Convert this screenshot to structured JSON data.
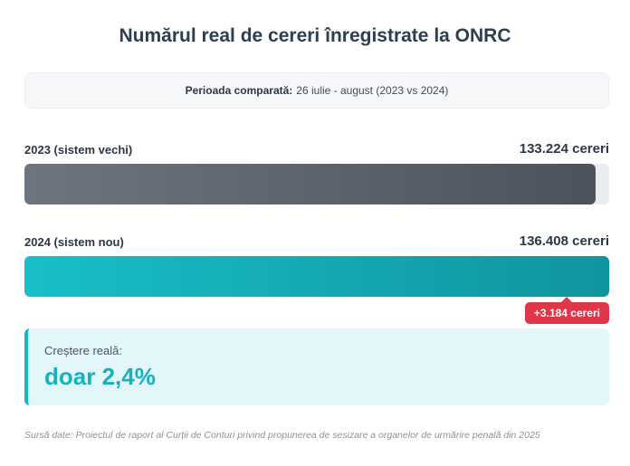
{
  "title": "Numărul real de cereri înregistrate la ONRC",
  "period": {
    "label": "Perioada comparată:",
    "value": "26 iulie - august (2023 vs 2024)"
  },
  "chart_data": {
    "type": "bar",
    "orientation": "horizontal",
    "title": "Numărul real de cereri înregistrate la ONRC",
    "categories": [
      "2023 (sistem vechi)",
      "2024 (sistem nou)"
    ],
    "values": [
      133224,
      136408
    ],
    "value_labels": [
      "133.224 cereri",
      "136.408 cereri"
    ],
    "xlim": [
      0,
      136408
    ],
    "colors": [
      "#5b626c",
      "#14aab3"
    ],
    "annotation": "+3.184 cereri"
  },
  "rows": [
    {
      "label": "2023 (sistem vechi)",
      "value_text": "133.224 cereri"
    },
    {
      "label": "2024 (sistem nou)",
      "value_text": "136.408 cereri"
    }
  ],
  "difference_badge": "+3.184 cereri",
  "growth": {
    "label": "Creștere reală:",
    "value": "doar 2,4%"
  },
  "source": "Sursă date: Proiectul de raport al Curții de Conturi privind propunerea de sesizare a organelor de urmărire penală din 2025"
}
